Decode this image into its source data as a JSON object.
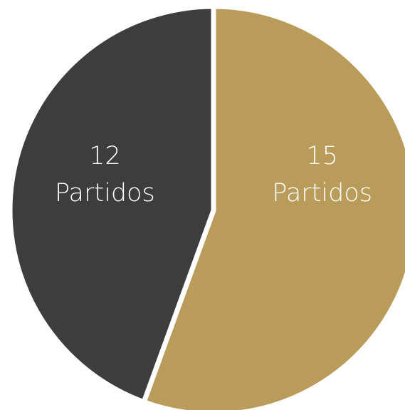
{
  "chart_data": {
    "type": "pie",
    "title": "",
    "slices": [
      {
        "value": 15,
        "unit": "Partidos",
        "color": "#b99b5a"
      },
      {
        "value": 12,
        "unit": "Partidos",
        "color": "#3d3d3d"
      }
    ],
    "start_angle_deg": 0,
    "direction": "clockwise",
    "legend": "none"
  }
}
